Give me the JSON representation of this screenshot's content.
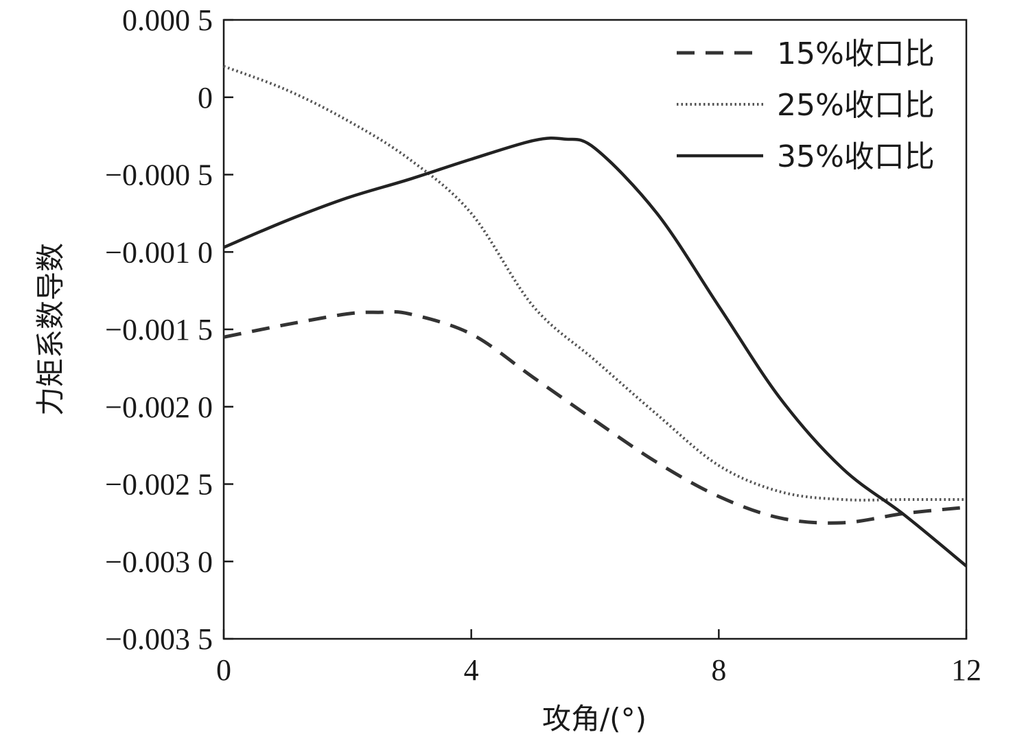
{
  "chart_data": {
    "type": "line",
    "xlabel": "攻角/(°)",
    "ylabel": "力矩系数导数",
    "xlim": [
      0,
      12
    ],
    "ylim": [
      -0.0035,
      0.0005
    ],
    "xticks": [
      0,
      4,
      8,
      12
    ],
    "xtick_labels": [
      "0",
      "4",
      "8",
      "12"
    ],
    "yticks": [
      0.0005,
      0,
      -0.0005,
      -0.001,
      -0.0015,
      -0.002,
      -0.0025,
      -0.003,
      -0.0035
    ],
    "ytick_labels": [
      "0.000 5",
      "0",
      "−0.000 5",
      "−0.001 0",
      "−0.001 5",
      "−0.002 0",
      "−0.002 5",
      "−0.003 0",
      "−0.003 5"
    ],
    "grid": false,
    "legend_position": "top-right",
    "series": [
      {
        "name": "15%收口比",
        "style": "dashed",
        "color": "#333333",
        "x": [
          0,
          1,
          2,
          2.5,
          3,
          4,
          5,
          6,
          7,
          8,
          9,
          10,
          11,
          12
        ],
        "y": [
          -0.00155,
          -0.00147,
          -0.0014,
          -0.00139,
          -0.0014,
          -0.00153,
          -0.00181,
          -0.00209,
          -0.00236,
          -0.00258,
          -0.00272,
          -0.00275,
          -0.00269,
          -0.00265
        ]
      },
      {
        "name": "25%收口比",
        "style": "dotted",
        "color": "#555555",
        "x": [
          0,
          1,
          2,
          3,
          4,
          5,
          6,
          7,
          8,
          9,
          10,
          11,
          12
        ],
        "y": [
          0.0002,
          5e-05,
          -0.00015,
          -0.0004,
          -0.00075,
          -0.00135,
          -0.0017,
          -0.00205,
          -0.00238,
          -0.00255,
          -0.0026,
          -0.0026,
          -0.0026
        ]
      },
      {
        "name": "35%收口比",
        "style": "solid",
        "color": "#222222",
        "x": [
          0,
          1,
          2,
          3,
          4,
          5,
          5.5,
          6,
          7,
          8,
          9,
          10,
          11,
          12
        ],
        "y": [
          -0.00097,
          -0.0008,
          -0.00065,
          -0.00053,
          -0.0004,
          -0.00028,
          -0.00027,
          -0.00033,
          -0.00075,
          -0.00135,
          -0.00195,
          -0.0024,
          -0.0027,
          -0.00303
        ]
      }
    ]
  }
}
